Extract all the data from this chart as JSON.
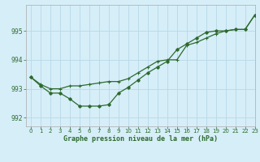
{
  "background_color": "#d6eef8",
  "grid_color": "#b8d8e8",
  "line_color": "#2d6a2d",
  "xlabel": "Graphe pression niveau de la mer (hPa)",
  "xlim": [
    -0.5,
    23
  ],
  "ylim": [
    991.7,
    995.9
  ],
  "yticks": [
    992,
    993,
    994,
    995
  ],
  "xticks": [
    0,
    1,
    2,
    3,
    4,
    5,
    6,
    7,
    8,
    9,
    10,
    11,
    12,
    13,
    14,
    15,
    16,
    17,
    18,
    19,
    20,
    21,
    22,
    23
  ],
  "series1_x": [
    0,
    1,
    2,
    3,
    4,
    5,
    6,
    7,
    8,
    9,
    10,
    11,
    12,
    13,
    14,
    15,
    16,
    17,
    18,
    19,
    20,
    21,
    22,
    23
  ],
  "series1_y": [
    993.4,
    993.15,
    993.0,
    993.0,
    993.1,
    993.1,
    993.15,
    993.2,
    993.25,
    993.25,
    993.35,
    993.55,
    993.75,
    993.95,
    994.0,
    994.0,
    994.5,
    994.6,
    994.75,
    994.9,
    995.0,
    995.05,
    995.05,
    995.55
  ],
  "series2_x": [
    0,
    1,
    2,
    3,
    4,
    5,
    6,
    7,
    8,
    9,
    10,
    11,
    12,
    13,
    14,
    15,
    16,
    17,
    18,
    19,
    20,
    21,
    22,
    23
  ],
  "series2_y": [
    993.4,
    993.1,
    992.85,
    992.85,
    992.65,
    992.4,
    992.4,
    992.4,
    992.45,
    992.85,
    993.05,
    993.3,
    993.55,
    993.75,
    993.95,
    994.35,
    994.55,
    994.75,
    994.95,
    995.0,
    995.0,
    995.05,
    995.05,
    995.55
  ]
}
